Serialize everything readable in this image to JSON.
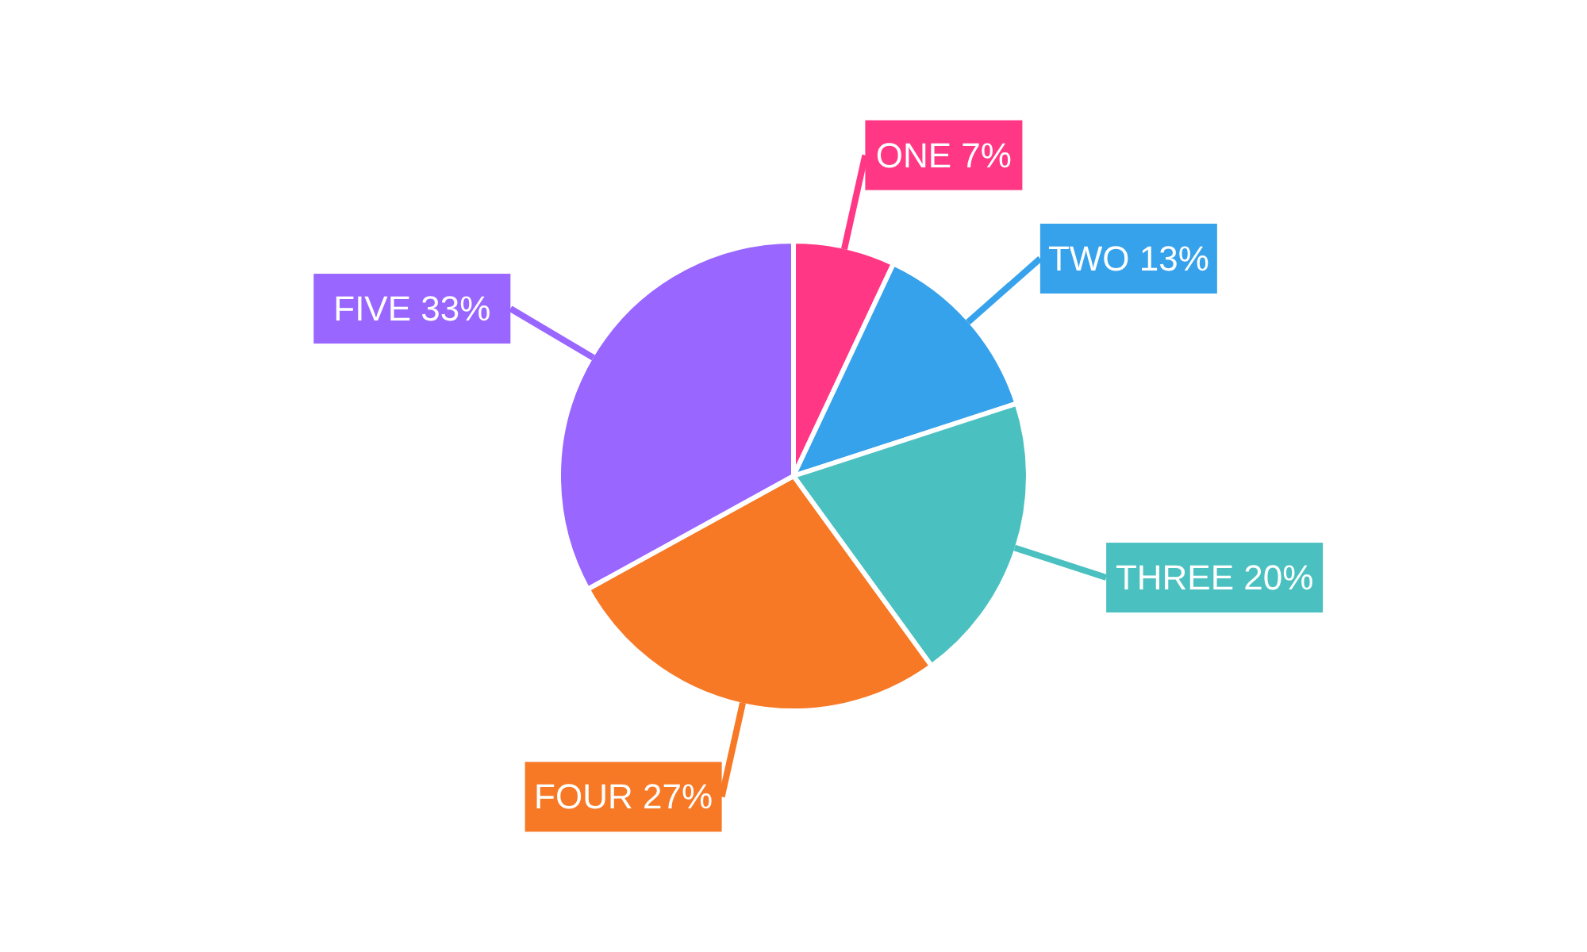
{
  "chart_data": {
    "type": "pie",
    "categories": [
      "ONE",
      "TWO",
      "THREE",
      "FOUR",
      "FIVE"
    ],
    "values": [
      7,
      13,
      20,
      27,
      33
    ],
    "value_labels": [
      "7%",
      "13%",
      "20%",
      "27%",
      "33%"
    ],
    "colors": [
      "#ff3784",
      "#36a2eb",
      "#4bc0c0",
      "#f77825",
      "#9966ff"
    ]
  }
}
